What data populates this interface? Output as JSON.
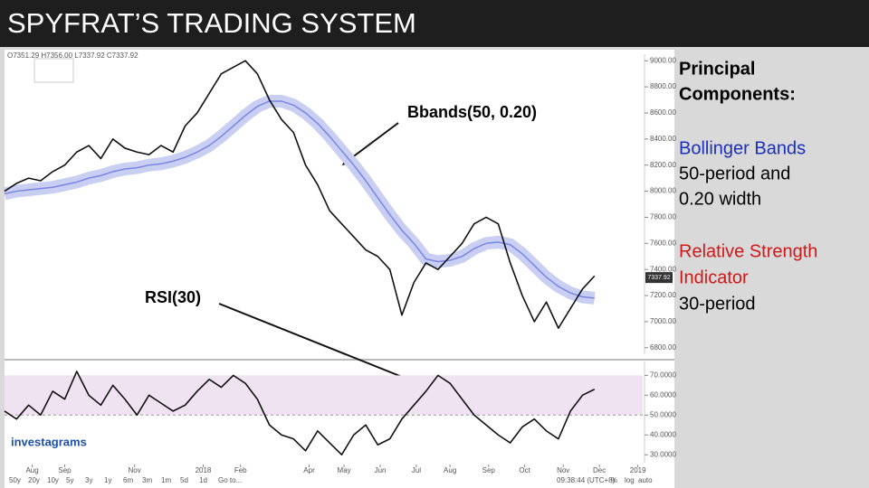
{
  "header": {
    "title": "SPYFRAT’S TRADING SYSTEM"
  },
  "side_panel": {
    "heading": [
      "Principal",
      "Components:"
    ],
    "items": [
      {
        "name": "Bollinger Bands",
        "color": "#1c2fbf",
        "lines": [
          "50-period and",
          "0.20 width"
        ]
      },
      {
        "name": [
          "Relative Strength",
          "Indicator"
        ],
        "color": "#d01818",
        "lines": [
          "30-period"
        ]
      }
    ]
  },
  "toolbar": {
    "ranges": [
      "50y",
      "20y",
      "10y",
      "5y",
      "3y",
      "1y",
      "6m",
      "3m",
      "1m",
      "5d",
      "1d",
      "Go to..."
    ],
    "clock": "09:38:44 (UTC+8)",
    "options": [
      "%",
      "log",
      "auto"
    ]
  },
  "chart_data": [
    {
      "type": "line",
      "ohlc": "O7351.29 H7356.00 L7337.92 C7337.92",
      "annotation": "Bbands(50, 0.20)",
      "last_price": 7337.92,
      "x": [
        0,
        1,
        2,
        3,
        4,
        5,
        6,
        7,
        8,
        9,
        10,
        11,
        12,
        13,
        14,
        15,
        16,
        17,
        18,
        19,
        20,
        21,
        22,
        23,
        24,
        25,
        26,
        27,
        28,
        29,
        30,
        31,
        32,
        33,
        34,
        35,
        36,
        37,
        38,
        39,
        40,
        41,
        42,
        43,
        44,
        45,
        46,
        47,
        48,
        49
      ],
      "series": [
        {
          "name": "Bbands(50, 0.20)",
          "color": "#7a86e6",
          "values": [
            7980,
            8000,
            8010,
            8020,
            8030,
            8050,
            8070,
            8100,
            8120,
            8150,
            8170,
            8180,
            8200,
            8210,
            8230,
            8260,
            8300,
            8350,
            8420,
            8500,
            8580,
            8650,
            8690,
            8690,
            8660,
            8600,
            8520,
            8420,
            8310,
            8200,
            8080,
            7950,
            7820,
            7700,
            7600,
            7480,
            7460,
            7470,
            7500,
            7560,
            7600,
            7610,
            7590,
            7520,
            7430,
            7340,
            7270,
            7220,
            7190,
            7180
          ]
        },
        {
          "name": "Price",
          "color": "#111111",
          "values": [
            8000,
            8060,
            8100,
            8080,
            8150,
            8200,
            8300,
            8350,
            8250,
            8400,
            8330,
            8300,
            8280,
            8350,
            8300,
            8500,
            8600,
            8750,
            8900,
            8950,
            9000,
            8900,
            8700,
            8550,
            8450,
            8200,
            8050,
            7850,
            7750,
            7650,
            7550,
            7500,
            7400,
            7050,
            7300,
            7450,
            7400,
            7500,
            7600,
            7750,
            7800,
            7750,
            7450,
            7200,
            7000,
            7150,
            6950,
            7100,
            7250,
            7350
          ]
        }
      ],
      "xlim": [
        0,
        53
      ],
      "ylim": [
        6750,
        9050
      ],
      "yticks": [
        {
          "value": 9000,
          "label": "9000.00"
        },
        {
          "value": 8800,
          "label": "8800.00"
        },
        {
          "value": 8600,
          "label": "8600.00"
        },
        {
          "value": 8400,
          "label": "8400.00"
        },
        {
          "value": 8200,
          "label": "8200.00"
        },
        {
          "value": 8000,
          "label": "8000.00"
        },
        {
          "value": 7800,
          "label": "7800.00"
        },
        {
          "value": 7600,
          "label": "7600.00"
        },
        {
          "value": 7400,
          "label": "7400.00"
        },
        {
          "value": 7200,
          "label": "7200.00"
        },
        {
          "value": 7000,
          "label": "7000.00"
        },
        {
          "value": 6800,
          "label": "6800.00"
        }
      ]
    },
    {
      "type": "line",
      "annotation": "RSI(30)",
      "brand": "investagrams",
      "band": [
        50,
        70
      ],
      "x": [
        0,
        1,
        2,
        3,
        4,
        5,
        6,
        7,
        8,
        9,
        10,
        11,
        12,
        13,
        14,
        15,
        16,
        17,
        18,
        19,
        20,
        21,
        22,
        23,
        24,
        25,
        26,
        27,
        28,
        29,
        30,
        31,
        32,
        33,
        34,
        35,
        36,
        37,
        38,
        39,
        40,
        41,
        42,
        43,
        44,
        45,
        46,
        47,
        48,
        49
      ],
      "series": [
        {
          "name": "RSI(30)",
          "color": "#111111",
          "values": [
            52,
            48,
            55,
            50,
            62,
            58,
            72,
            60,
            55,
            65,
            58,
            50,
            60,
            56,
            52,
            55,
            62,
            68,
            64,
            70,
            66,
            58,
            45,
            40,
            38,
            32,
            42,
            36,
            30,
            40,
            45,
            35,
            38,
            48,
            55,
            62,
            70,
            66,
            58,
            50,
            45,
            40,
            36,
            44,
            48,
            42,
            38,
            52,
            60,
            63
          ]
        }
      ],
      "xlim": [
        0,
        53
      ],
      "ylim": [
        26,
        77
      ],
      "yticks": [
        {
          "value": 70,
          "label": "70.0000"
        },
        {
          "value": 60,
          "label": "60.0000"
        },
        {
          "value": 50,
          "label": "50.0000"
        },
        {
          "value": 40,
          "label": "40.0000"
        },
        {
          "value": 30,
          "label": "30.0000"
        }
      ],
      "xticks": [
        {
          "value": 2.3,
          "label": "Aug"
        },
        {
          "value": 5,
          "label": "Sep"
        },
        {
          "value": 10.8,
          "label": "Nov"
        },
        {
          "value": 16.5,
          "label": "2018"
        },
        {
          "value": 19.6,
          "label": "Feb"
        },
        {
          "value": 25.3,
          "label": "Apr"
        },
        {
          "value": 28.2,
          "label": "May"
        },
        {
          "value": 31.2,
          "label": "Jun"
        },
        {
          "value": 34.2,
          "label": "Jul"
        },
        {
          "value": 37,
          "label": "Aug"
        },
        {
          "value": 40.2,
          "label": "Sep"
        },
        {
          "value": 43.2,
          "label": "Oct"
        },
        {
          "value": 46.4,
          "label": "Nov"
        },
        {
          "value": 49.4,
          "label": "Dec"
        },
        {
          "value": 52.6,
          "label": "2019"
        }
      ]
    }
  ]
}
